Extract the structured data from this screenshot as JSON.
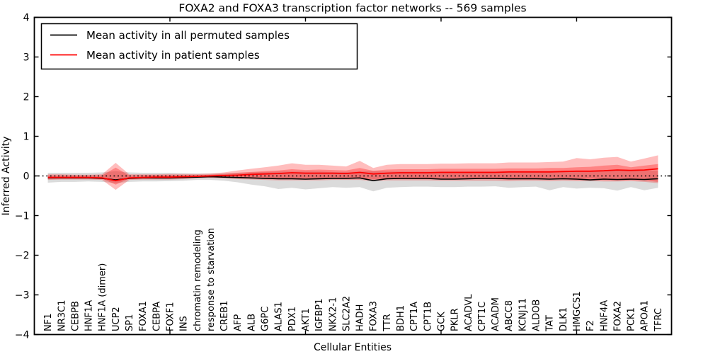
{
  "title": "FOXA2 and FOXA3 transcription factor networks -- 569 samples",
  "axes": {
    "ylabel": "Inferred Activity",
    "xlabel": "Cellular Entities",
    "ytick_labels": [
      "4",
      "3",
      "2",
      "1",
      "0",
      "−1",
      "−2",
      "−3",
      "−4"
    ],
    "ytick_values": [
      4,
      3,
      2,
      1,
      0,
      -1,
      -2,
      -3,
      -4
    ],
    "xtick_major_values": [
      10,
      20,
      30,
      40
    ]
  },
  "legend": {
    "entries": [
      {
        "label": "Mean activity in all permuted samples",
        "color": "#000000"
      },
      {
        "label": "Mean activity in patient samples",
        "color": "#ff0000"
      }
    ]
  },
  "colors": {
    "frame": "#000000",
    "permuted_line": "#000000",
    "patient_line": "#ff0000",
    "zero_line": "#000000",
    "gray_band": "#999999",
    "red_band": "#ff0000",
    "background": "#ffffff"
  },
  "chart_data": {
    "type": "line",
    "title": "FOXA2 and FOXA3 transcription factor networks -- 569 samples",
    "xlabel": "Cellular Entities",
    "ylabel": "Inferred Activity",
    "ylim": [
      -4,
      4
    ],
    "xlim": [
      0,
      47
    ],
    "grid": false,
    "legend_position": "upper left",
    "zero_reference_line": 0,
    "categories": [
      "NF1",
      "NR3C1",
      "CEBPB",
      "HNF1A",
      "HNF1A (dimer)",
      "UCP2",
      "SP1",
      "FOXA1",
      "CEBPA",
      "FOXF1",
      "INS",
      "chromatin remodeling",
      "response to starvation",
      "CREB1",
      "AFP",
      "ALB",
      "G6PC",
      "ALAS1",
      "PDX1",
      "AKT1",
      "IGFBP1",
      "NKX2-1",
      "SLC2A2",
      "HADH",
      "FOXA3",
      "TTR",
      "BDH1",
      "CPT1A",
      "CPT1B",
      "GCK",
      "PKLR",
      "ACADVL",
      "CPT1C",
      "ACADM",
      "ABCC8",
      "KCNJ11",
      "ALDOB",
      "TAT",
      "DLK1",
      "HMGCS1",
      "F2",
      "HNF4A",
      "FOXA2",
      "PCK1",
      "APOA1",
      "TFRC"
    ],
    "series": [
      {
        "name": "Mean activity in all permuted samples",
        "style": "solid black line",
        "values": [
          -0.05,
          -0.05,
          -0.05,
          -0.05,
          -0.06,
          -0.1,
          -0.06,
          -0.05,
          -0.05,
          -0.05,
          -0.04,
          -0.03,
          -0.02,
          -0.03,
          -0.04,
          -0.05,
          -0.06,
          -0.07,
          -0.07,
          -0.08,
          -0.07,
          -0.06,
          -0.06,
          -0.05,
          -0.12,
          -0.07,
          -0.06,
          -0.06,
          -0.06,
          -0.08,
          -0.08,
          -0.07,
          -0.06,
          -0.06,
          -0.07,
          -0.07,
          -0.07,
          -0.08,
          -0.07,
          -0.08,
          -0.1,
          -0.08,
          -0.09,
          -0.08,
          -0.09,
          -0.07
        ]
      },
      {
        "name": "Mean activity in patient samples",
        "style": "solid red line",
        "values": [
          -0.04,
          -0.04,
          -0.04,
          -0.04,
          -0.05,
          -0.12,
          -0.05,
          -0.04,
          -0.03,
          -0.03,
          -0.02,
          -0.01,
          0.0,
          0.01,
          0.02,
          0.04,
          0.05,
          0.06,
          0.08,
          0.07,
          0.07,
          0.07,
          0.06,
          0.09,
          0.05,
          0.07,
          0.08,
          0.08,
          0.08,
          0.09,
          0.09,
          0.09,
          0.09,
          0.09,
          0.1,
          0.1,
          0.1,
          0.1,
          0.11,
          0.12,
          0.12,
          0.13,
          0.15,
          0.14,
          0.15,
          0.18
        ]
      },
      {
        "name": "permuted band upper",
        "style": "gray band edge",
        "values": [
          0.08,
          0.08,
          0.08,
          0.08,
          0.09,
          0.12,
          0.09,
          0.08,
          0.08,
          0.08,
          0.07,
          0.06,
          0.06,
          0.07,
          0.08,
          0.09,
          0.1,
          0.11,
          0.11,
          0.11,
          0.11,
          0.1,
          0.1,
          0.11,
          0.12,
          0.11,
          0.11,
          0.11,
          0.11,
          0.11,
          0.11,
          0.11,
          0.11,
          0.11,
          0.12,
          0.12,
          0.12,
          0.12,
          0.12,
          0.13,
          0.13,
          0.13,
          0.14,
          0.13,
          0.14,
          0.13
        ]
      },
      {
        "name": "permuted band lower",
        "style": "gray band edge",
        "values": [
          -0.17,
          -0.15,
          -0.15,
          -0.14,
          -0.15,
          -0.18,
          -0.15,
          -0.14,
          -0.14,
          -0.13,
          -0.12,
          -0.1,
          -0.1,
          -0.12,
          -0.16,
          -0.22,
          -0.26,
          -0.33,
          -0.3,
          -0.34,
          -0.31,
          -0.28,
          -0.3,
          -0.28,
          -0.39,
          -0.3,
          -0.28,
          -0.27,
          -0.27,
          -0.28,
          -0.28,
          -0.27,
          -0.27,
          -0.26,
          -0.3,
          -0.28,
          -0.27,
          -0.36,
          -0.28,
          -0.32,
          -0.3,
          -0.31,
          -0.37,
          -0.28,
          -0.36,
          -0.3
        ]
      },
      {
        "name": "patient band outer upper",
        "style": "light red band edge",
        "values": [
          0.04,
          0.04,
          0.03,
          0.03,
          0.04,
          0.33,
          0.04,
          0.04,
          0.04,
          0.05,
          0.05,
          0.05,
          0.06,
          0.09,
          0.14,
          0.18,
          0.22,
          0.26,
          0.32,
          0.28,
          0.28,
          0.26,
          0.24,
          0.38,
          0.2,
          0.28,
          0.3,
          0.3,
          0.3,
          0.31,
          0.31,
          0.32,
          0.32,
          0.32,
          0.34,
          0.34,
          0.34,
          0.35,
          0.36,
          0.45,
          0.42,
          0.46,
          0.48,
          0.36,
          0.44,
          0.52
        ]
      },
      {
        "name": "patient band outer lower",
        "style": "light red band edge",
        "values": [
          -0.1,
          -0.09,
          -0.09,
          -0.09,
          -0.1,
          -0.35,
          -0.1,
          -0.09,
          -0.09,
          -0.09,
          -0.08,
          -0.06,
          -0.05,
          -0.06,
          -0.08,
          -0.09,
          -0.1,
          -0.11,
          -0.11,
          -0.11,
          -0.11,
          -0.1,
          -0.1,
          -0.1,
          -0.13,
          -0.11,
          -0.11,
          -0.11,
          -0.11,
          -0.12,
          -0.12,
          -0.12,
          -0.12,
          -0.12,
          -0.13,
          -0.12,
          -0.12,
          -0.13,
          -0.12,
          -0.13,
          -0.13,
          -0.14,
          -0.14,
          -0.13,
          -0.15,
          -0.18
        ]
      },
      {
        "name": "patient band inner upper",
        "style": "dark red band edge",
        "values": [
          0.01,
          0.01,
          0.01,
          0.01,
          0.01,
          0.21,
          0.01,
          0.02,
          0.02,
          0.02,
          0.02,
          0.02,
          0.03,
          0.05,
          0.08,
          0.1,
          0.12,
          0.14,
          0.17,
          0.15,
          0.16,
          0.15,
          0.14,
          0.2,
          0.13,
          0.16,
          0.17,
          0.17,
          0.17,
          0.18,
          0.18,
          0.18,
          0.18,
          0.18,
          0.19,
          0.19,
          0.19,
          0.2,
          0.2,
          0.22,
          0.23,
          0.26,
          0.28,
          0.22,
          0.26,
          0.3
        ]
      },
      {
        "name": "patient band inner lower",
        "style": "dark red band edge",
        "values": [
          -0.07,
          -0.06,
          -0.06,
          -0.06,
          -0.07,
          -0.22,
          -0.07,
          -0.06,
          -0.06,
          -0.06,
          -0.05,
          -0.04,
          -0.03,
          -0.04,
          -0.05,
          -0.06,
          -0.06,
          -0.07,
          -0.07,
          -0.07,
          -0.07,
          -0.07,
          -0.07,
          -0.06,
          -0.09,
          -0.08,
          -0.08,
          -0.08,
          -0.08,
          -0.08,
          -0.08,
          -0.08,
          -0.08,
          -0.08,
          -0.09,
          -0.09,
          -0.09,
          -0.09,
          -0.09,
          -0.1,
          -0.1,
          -0.1,
          -0.11,
          -0.1,
          -0.11,
          -0.15
        ]
      }
    ]
  }
}
